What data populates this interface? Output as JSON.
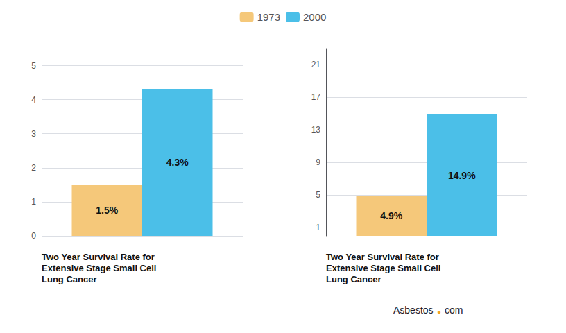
{
  "chart_data": [
    {
      "type": "bar",
      "title": "Two Year Survival Rate for\nExtensive Stage Small Cell\nLung Cancer",
      "categories": [
        null
      ],
      "series": [
        {
          "name": "1973",
          "color": "#f5c87a",
          "values": [
            1.5
          ],
          "value_labels": [
            "1.5%"
          ]
        },
        {
          "name": "2000",
          "color": "#4bbfe8",
          "values": [
            4.3
          ],
          "value_labels": [
            "4.3%"
          ]
        }
      ],
      "ylim": [
        0,
        5.5
      ],
      "yticks": [
        0,
        1,
        2,
        3,
        4,
        5
      ],
      "grid": true,
      "tick_labels": "y",
      "legend": "top"
    },
    {
      "type": "bar",
      "title": "Two Year Survival Rate for\nExtensive Stage Small Cell\nLung Cancer",
      "categories": [
        null
      ],
      "series": [
        {
          "name": "1973",
          "color": "#f5c87a",
          "values": [
            4.9
          ],
          "value_labels": [
            "4.9%"
          ]
        },
        {
          "name": "2000",
          "color": "#4bbfe8",
          "values": [
            14.9
          ],
          "value_labels": [
            "14.9%"
          ]
        }
      ],
      "ylim": [
        0,
        23
      ],
      "yticks": [
        1,
        5,
        9,
        13,
        17,
        21
      ],
      "grid": true,
      "tick_labels": "y",
      "annotations": [
        {
          "text": "Asbestos",
          "color": "#1a1a2e"
        },
        {
          "text": "●",
          "color": "#f5a623"
        },
        {
          "text": "com",
          "color": "#1a1a2e"
        }
      ]
    }
  ]
}
